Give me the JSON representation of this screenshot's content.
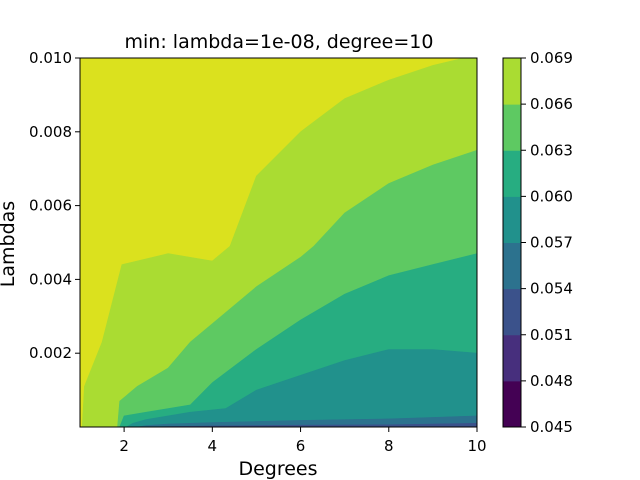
{
  "chart_data": {
    "type": "contourf",
    "title": "min: lambda=1e-08, degree=10",
    "xlabel": "Degrees",
    "ylabel": "Lambdas",
    "xlim": [
      1,
      10
    ],
    "ylim": [
      1e-08,
      0.01
    ],
    "x_ticks": [
      2,
      4,
      6,
      8,
      10
    ],
    "x_tick_labels": [
      "2",
      "4",
      "6",
      "8",
      "10"
    ],
    "y_ticks": [
      0.002,
      0.004,
      0.006,
      0.008,
      0.01
    ],
    "y_tick_labels": [
      "0.002",
      "0.004",
      "0.006",
      "0.008",
      "0.010"
    ],
    "colormap": "viridis",
    "colorbar": {
      "levels": [
        0.045,
        0.048,
        0.051,
        0.054,
        0.057,
        0.06,
        0.063,
        0.066,
        0.069
      ],
      "tick_labels": [
        "0.045",
        "0.048",
        "0.051",
        "0.054",
        "0.057",
        "0.060",
        "0.063",
        "0.066",
        "0.069"
      ],
      "colors": [
        "#440154",
        "#46327e",
        "#365c8d",
        "#277f8e",
        "#1fa187",
        "#4ac16d",
        "#a0da39",
        "#fde725"
      ]
    },
    "band_colors": [
      "#440154",
      "#472f7d",
      "#3b528b",
      "#2c728e",
      "#21918c",
      "#27ad81",
      "#5ec962",
      "#aadc32",
      "#dbe11e"
    ],
    "boundaries": [
      {
        "level": 0.048,
        "points": [
          [
            2.6,
            1e-08
          ],
          [
            3,
            1e-05
          ],
          [
            4,
            3e-05
          ],
          [
            6,
            5e-05
          ],
          [
            8,
            6e-05
          ],
          [
            10,
            0.0001
          ]
        ]
      },
      {
        "level": 0.051,
        "points": [
          [
            2.3,
            1e-08
          ],
          [
            2.5,
            4e-05
          ],
          [
            3,
            8e-05
          ],
          [
            4,
            0.00012
          ],
          [
            6,
            0.00018
          ],
          [
            8,
            0.00022
          ],
          [
            10,
            0.0003
          ]
        ]
      },
      {
        "level": 0.054,
        "points": [
          [
            2.05,
            1e-08
          ],
          [
            2.2,
            0.0001
          ],
          [
            2.5,
            0.0002
          ],
          [
            3.5,
            0.0004
          ],
          [
            4.3,
            0.0005
          ],
          [
            5,
            0.001
          ],
          [
            6,
            0.0014
          ],
          [
            7,
            0.0018
          ],
          [
            8,
            0.0021
          ],
          [
            9,
            0.0021
          ],
          [
            10,
            0.002
          ]
        ]
      },
      {
        "level": 0.057,
        "points": [
          [
            1.9,
            1e-08
          ],
          [
            2,
            0.0003
          ],
          [
            2.5,
            0.0004
          ],
          [
            3.5,
            0.0006
          ],
          [
            4,
            0.0012
          ],
          [
            5,
            0.0021
          ],
          [
            6,
            0.0029
          ],
          [
            7,
            0.0036
          ],
          [
            8,
            0.0041
          ],
          [
            9,
            0.0044
          ],
          [
            10,
            0.0047
          ]
        ]
      },
      {
        "level": 0.06,
        "points": [
          [
            1.85,
            1e-08
          ],
          [
            1.9,
            0.0007
          ],
          [
            2.3,
            0.0011
          ],
          [
            3,
            0.0016
          ],
          [
            3.5,
            0.0023
          ],
          [
            4,
            0.0028
          ],
          [
            5,
            0.0038
          ],
          [
            6,
            0.0046
          ],
          [
            6.3,
            0.0049
          ],
          [
            7,
            0.0058
          ],
          [
            8,
            0.0066
          ],
          [
            9,
            0.0071
          ],
          [
            10,
            0.0075
          ]
        ]
      },
      {
        "level": 0.063,
        "points": [
          [
            1.05,
            1e-08
          ],
          [
            1.1,
            0.0011
          ],
          [
            1.5,
            0.0023
          ],
          [
            1.95,
            0.0044
          ],
          [
            3,
            0.0047
          ],
          [
            4,
            0.0045
          ],
          [
            4.4,
            0.0049
          ],
          [
            5,
            0.0068
          ],
          [
            6,
            0.008
          ],
          [
            7,
            0.0089
          ],
          [
            8,
            0.0094
          ],
          [
            9,
            0.0098
          ],
          [
            9.7,
            0.01
          ],
          [
            10,
            0.01
          ]
        ]
      }
    ]
  }
}
